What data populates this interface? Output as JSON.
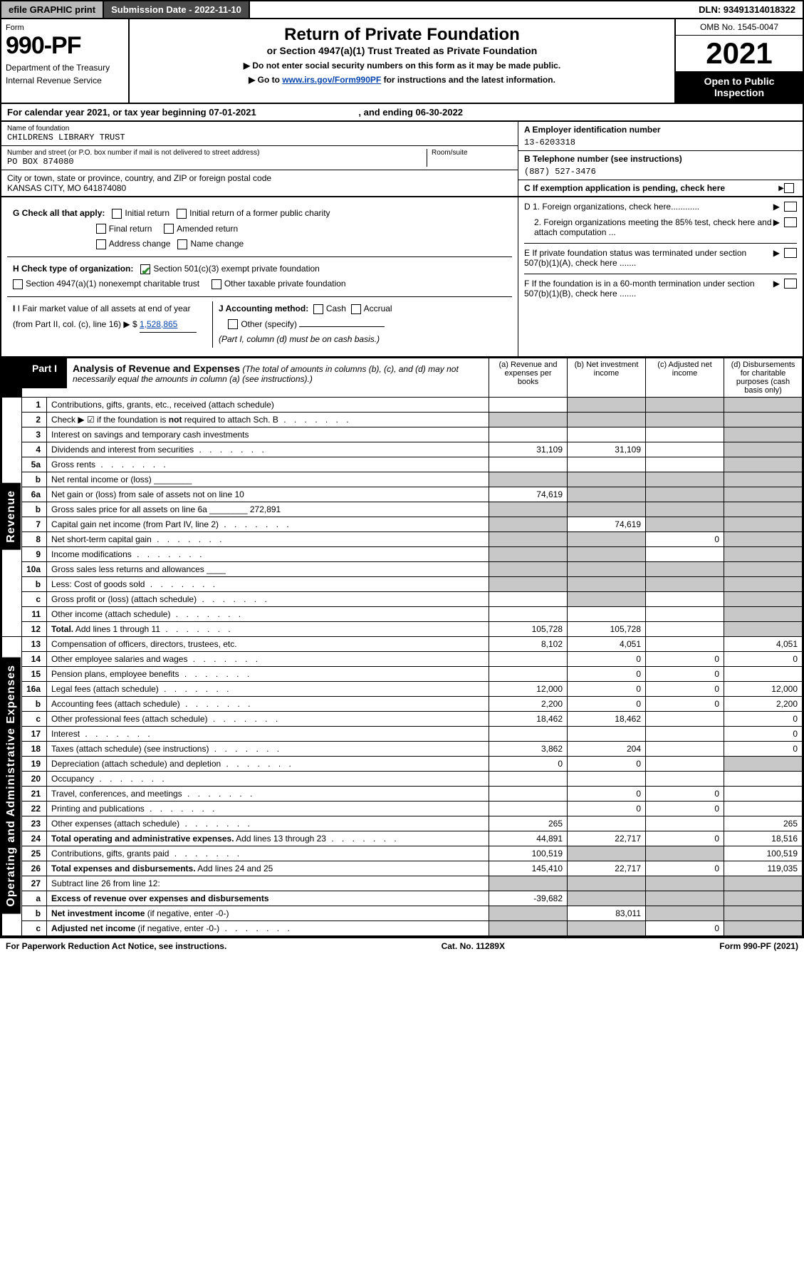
{
  "topbar": {
    "efile": "efile GRAPHIC print",
    "subdate_label": "Submission Date - 2022-11-10",
    "dln": "DLN: 93491314018322"
  },
  "header": {
    "form_label": "Form",
    "form_no": "990-PF",
    "dept": "Department of the Treasury",
    "irs": "Internal Revenue Service",
    "title": "Return of Private Foundation",
    "subtitle": "or Section 4947(a)(1) Trust Treated as Private Foundation",
    "note1": "▶ Do not enter social security numbers on this form as it may be made public.",
    "note2_pre": "▶ Go to ",
    "note2_link": "www.irs.gov/Form990PF",
    "note2_post": " for instructions and the latest information.",
    "omb": "OMB No. 1545-0047",
    "year": "2021",
    "open": "Open to Public Inspection"
  },
  "calyear": {
    "text_pre": "For calendar year 2021, or tax year beginning ",
    "begin": "07-01-2021",
    "text_mid": " , and ending ",
    "end": "06-30-2022"
  },
  "entity": {
    "name_lbl": "Name of foundation",
    "name": "CHILDRENS LIBRARY TRUST",
    "addr_lbl": "Number and street (or P.O. box number if mail is not delivered to street address)",
    "addr": "PO BOX 874080",
    "room_lbl": "Room/suite",
    "city_lbl": "City or town, state or province, country, and ZIP or foreign postal code",
    "city": "KANSAS CITY, MO  641874080",
    "ein_lbl": "A Employer identification number",
    "ein": "13-6203318",
    "tel_lbl": "B Telephone number (see instructions)",
    "tel": "(887) 527-3476",
    "c_lbl": "C If exemption application is pending, check here"
  },
  "g": {
    "label": "G Check all that apply:",
    "initial": "Initial return",
    "initial_former": "Initial return of a former public charity",
    "final": "Final return",
    "amended": "Amended return",
    "addr_change": "Address change",
    "name_change": "Name change"
  },
  "h": {
    "label": "H Check type of organization:",
    "opt1": "Section 501(c)(3) exempt private foundation",
    "opt2": "Section 4947(a)(1) nonexempt charitable trust",
    "opt3": "Other taxable private foundation"
  },
  "i": {
    "label": "I Fair market value of all assets at end of year (from Part II, col. (c), line 16)",
    "value": "1,528,865"
  },
  "j": {
    "label": "J Accounting method:",
    "cash": "Cash",
    "accrual": "Accrual",
    "other": "Other (specify)",
    "note": "(Part I, column (d) must be on cash basis.)"
  },
  "de": {
    "d1": "D 1. Foreign organizations, check here............",
    "d2": "2. Foreign organizations meeting the 85% test, check here and attach computation ...",
    "e": "E  If private foundation status was terminated under section 507(b)(1)(A), check here .......",
    "f": "F  If the foundation is in a 60-month termination under section 507(b)(1)(B), check here ......."
  },
  "part1": {
    "tag": "Part I",
    "title": "Analysis of Revenue and Expenses",
    "title_note": " (The total of amounts in columns (b), (c), and (d) may not necessarily equal the amounts in column (a) (see instructions).)",
    "col_a": "(a)  Revenue and expenses per books",
    "col_b": "(b)  Net investment income",
    "col_c": "(c)  Adjusted net income",
    "col_d": "(d)  Disbursements for charitable purposes (cash basis only)"
  },
  "sides": {
    "revenue": "Revenue",
    "opex": "Operating and Administrative Expenses"
  },
  "rows": [
    {
      "n": "1",
      "lbl": "Contributions, gifts, grants, etc., received (attach schedule)",
      "a": "",
      "b": "shade",
      "c": "shade",
      "d": "shade"
    },
    {
      "n": "2",
      "lbl": "Check ▶ ☑ if the foundation is <b>not</b> required to attach Sch. B",
      "dots": true,
      "a": "shade",
      "b": "shade",
      "c": "shade",
      "d": "shade"
    },
    {
      "n": "3",
      "lbl": "Interest on savings and temporary cash investments",
      "a": "",
      "b": "",
      "c": "",
      "d": "shade"
    },
    {
      "n": "4",
      "lbl": "Dividends and interest from securities",
      "dots": true,
      "a": "31,109",
      "b": "31,109",
      "c": "",
      "d": "shade"
    },
    {
      "n": "5a",
      "lbl": "Gross rents",
      "dots": true,
      "a": "",
      "b": "",
      "c": "",
      "d": "shade"
    },
    {
      "n": "b",
      "lbl": "Net rental income or (loss)  ________",
      "a": "shade",
      "b": "shade",
      "c": "shade",
      "d": "shade"
    },
    {
      "n": "6a",
      "lbl": "Net gain or (loss) from sale of assets not on line 10",
      "a": "74,619",
      "b": "shade",
      "c": "shade",
      "d": "shade"
    },
    {
      "n": "b",
      "lbl": "Gross sales price for all assets on line 6a ________ 272,891",
      "a": "shade",
      "b": "shade",
      "c": "shade",
      "d": "shade"
    },
    {
      "n": "7",
      "lbl": "Capital gain net income (from Part IV, line 2)",
      "dots": true,
      "a": "shade",
      "b": "74,619",
      "c": "shade",
      "d": "shade"
    },
    {
      "n": "8",
      "lbl": "Net short-term capital gain",
      "dots": true,
      "a": "shade",
      "b": "shade",
      "c": "0",
      "d": "shade"
    },
    {
      "n": "9",
      "lbl": "Income modifications",
      "dots": true,
      "a": "shade",
      "b": "shade",
      "c": "",
      "d": "shade"
    },
    {
      "n": "10a",
      "lbl": "Gross sales less returns and allowances  ____",
      "a": "shade",
      "b": "shade",
      "c": "shade",
      "d": "shade"
    },
    {
      "n": "b",
      "lbl": "Less: Cost of goods sold",
      "dots": true,
      "a": "shade",
      "b": "shade",
      "c": "shade",
      "d": "shade"
    },
    {
      "n": "c",
      "lbl": "Gross profit or (loss) (attach schedule)",
      "dots": true,
      "a": "",
      "b": "shade",
      "c": "",
      "d": "shade"
    },
    {
      "n": "11",
      "lbl": "Other income (attach schedule)",
      "dots": true,
      "a": "",
      "b": "",
      "c": "",
      "d": "shade"
    },
    {
      "n": "12",
      "lbl": "<b>Total.</b> Add lines 1 through 11",
      "dots": true,
      "a": "105,728",
      "b": "105,728",
      "c": "",
      "d": "shade"
    },
    {
      "n": "13",
      "lbl": "Compensation of officers, directors, trustees, etc.",
      "a": "8,102",
      "b": "4,051",
      "c": "",
      "d": "4,051"
    },
    {
      "n": "14",
      "lbl": "Other employee salaries and wages",
      "dots": true,
      "a": "",
      "b": "0",
      "c": "0",
      "d": "0"
    },
    {
      "n": "15",
      "lbl": "Pension plans, employee benefits",
      "dots": true,
      "a": "",
      "b": "0",
      "c": "0",
      "d": ""
    },
    {
      "n": "16a",
      "lbl": "Legal fees (attach schedule)",
      "dots": true,
      "a": "12,000",
      "b": "0",
      "c": "0",
      "d": "12,000"
    },
    {
      "n": "b",
      "lbl": "Accounting fees (attach schedule)",
      "dots": true,
      "a": "2,200",
      "b": "0",
      "c": "0",
      "d": "2,200"
    },
    {
      "n": "c",
      "lbl": "Other professional fees (attach schedule)",
      "dots": true,
      "a": "18,462",
      "b": "18,462",
      "c": "",
      "d": "0"
    },
    {
      "n": "17",
      "lbl": "Interest",
      "dots": true,
      "a": "",
      "b": "",
      "c": "",
      "d": "0"
    },
    {
      "n": "18",
      "lbl": "Taxes (attach schedule) (see instructions)",
      "dots": true,
      "a": "3,862",
      "b": "204",
      "c": "",
      "d": "0"
    },
    {
      "n": "19",
      "lbl": "Depreciation (attach schedule) and depletion",
      "dots": true,
      "a": "0",
      "b": "0",
      "c": "",
      "d": "shade"
    },
    {
      "n": "20",
      "lbl": "Occupancy",
      "dots": true,
      "a": "",
      "b": "",
      "c": "",
      "d": ""
    },
    {
      "n": "21",
      "lbl": "Travel, conferences, and meetings",
      "dots": true,
      "a": "",
      "b": "0",
      "c": "0",
      "d": ""
    },
    {
      "n": "22",
      "lbl": "Printing and publications",
      "dots": true,
      "a": "",
      "b": "0",
      "c": "0",
      "d": ""
    },
    {
      "n": "23",
      "lbl": "Other expenses (attach schedule)",
      "dots": true,
      "a": "265",
      "b": "",
      "c": "",
      "d": "265"
    },
    {
      "n": "24",
      "lbl": "<b>Total operating and administrative expenses.</b> Add lines 13 through 23",
      "dots": true,
      "a": "44,891",
      "b": "22,717",
      "c": "0",
      "d": "18,516"
    },
    {
      "n": "25",
      "lbl": "Contributions, gifts, grants paid",
      "dots": true,
      "a": "100,519",
      "b": "shade",
      "c": "shade",
      "d": "100,519"
    },
    {
      "n": "26",
      "lbl": "<b>Total expenses and disbursements.</b> Add lines 24 and 25",
      "a": "145,410",
      "b": "22,717",
      "c": "0",
      "d": "119,035"
    },
    {
      "n": "27",
      "lbl": "Subtract line 26 from line 12:",
      "a": "shade",
      "b": "shade",
      "c": "shade",
      "d": "shade"
    },
    {
      "n": "a",
      "lbl": "<b>Excess of revenue over expenses and disbursements</b>",
      "a": "-39,682",
      "b": "shade",
      "c": "shade",
      "d": "shade"
    },
    {
      "n": "b",
      "lbl": "<b>Net investment income</b> (if negative, enter -0-)",
      "a": "shade",
      "b": "83,011",
      "c": "shade",
      "d": "shade"
    },
    {
      "n": "c",
      "lbl": "<b>Adjusted net income</b> (if negative, enter -0-)",
      "dots": true,
      "a": "shade",
      "b": "shade",
      "c": "0",
      "d": "shade"
    }
  ],
  "footer": {
    "left": "For Paperwork Reduction Act Notice, see instructions.",
    "mid": "Cat. No. 11289X",
    "right": "Form 990-PF (2021)"
  }
}
